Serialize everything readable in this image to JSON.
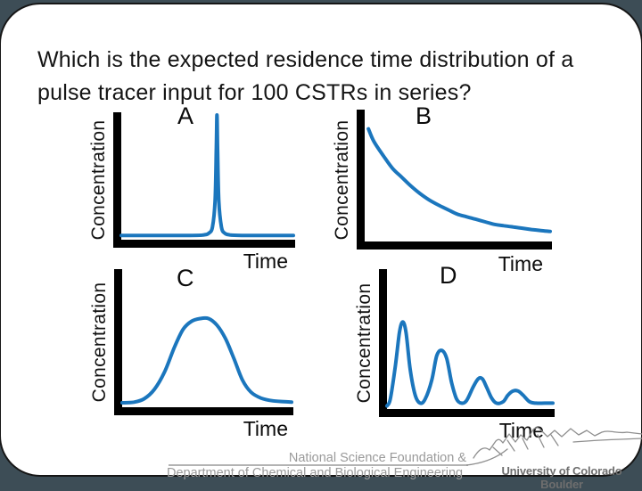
{
  "colors": {
    "background_edge": "#3d4d56",
    "slide_bg": "#ffffff",
    "frame_border": "#161616",
    "curve": "#1b76bd",
    "axis": "#000000",
    "title_text": "#151515",
    "footer_text": "#9a9a9a",
    "logo_text": "#6e6e6e"
  },
  "slide": {
    "title_line1": "Which is the expected residence time distribution of a",
    "title_line2": "pulse tracer input for 100 CSTRs in series?"
  },
  "chart_data": [
    {
      "id": "A",
      "type": "line",
      "title": "A",
      "xlabel": "Time",
      "ylabel": "Concentration",
      "description": "Single very sharp narrow pulse peaking at ~56% of the time axis, flat near-zero baseline elsewhere",
      "x_range": [
        0,
        1
      ],
      "y_range": [
        0,
        1
      ],
      "grid": false,
      "legend": false,
      "points": [
        [
          0,
          0.02
        ],
        [
          0.4,
          0.02
        ],
        [
          0.48,
          0.025
        ],
        [
          0.51,
          0.04
        ],
        [
          0.53,
          0.09
        ],
        [
          0.545,
          0.3
        ],
        [
          0.552,
          0.7
        ],
        [
          0.556,
          1.0
        ],
        [
          0.56,
          0.7
        ],
        [
          0.567,
          0.3
        ],
        [
          0.582,
          0.09
        ],
        [
          0.6,
          0.04
        ],
        [
          0.63,
          0.025
        ],
        [
          0.7,
          0.02
        ],
        [
          0.85,
          0.02
        ],
        [
          1,
          0.02
        ]
      ]
    },
    {
      "id": "B",
      "type": "line",
      "title": "B",
      "xlabel": "Time",
      "ylabel": "Concentration",
      "description": "Exponential decay from a high initial concentration toward a long low tail",
      "x_range": [
        0,
        1
      ],
      "y_range": [
        0,
        1
      ],
      "grid": false,
      "legend": false,
      "points": [
        [
          0.02,
          0.87
        ],
        [
          0.05,
          0.77
        ],
        [
          0.1,
          0.66
        ],
        [
          0.15,
          0.56
        ],
        [
          0.2,
          0.49
        ],
        [
          0.25,
          0.42
        ],
        [
          0.3,
          0.36
        ],
        [
          0.35,
          0.31
        ],
        [
          0.4,
          0.27
        ],
        [
          0.45,
          0.235
        ],
        [
          0.5,
          0.2
        ],
        [
          0.55,
          0.18
        ],
        [
          0.6,
          0.16
        ],
        [
          0.65,
          0.14
        ],
        [
          0.7,
          0.12
        ],
        [
          0.75,
          0.11
        ],
        [
          0.8,
          0.1
        ],
        [
          0.85,
          0.09
        ],
        [
          0.9,
          0.08
        ],
        [
          0.95,
          0.072
        ],
        [
          1,
          0.065
        ]
      ]
    },
    {
      "id": "C",
      "type": "line",
      "title": "C",
      "xlabel": "Time",
      "ylabel": "Concentration",
      "description": "Broad bell-shaped distribution with slightly flattened top centered near mid time axis",
      "x_range": [
        0,
        1
      ],
      "y_range": [
        0,
        1
      ],
      "grid": false,
      "legend": false,
      "points": [
        [
          0,
          0.02
        ],
        [
          0.07,
          0.025
        ],
        [
          0.13,
          0.05
        ],
        [
          0.19,
          0.12
        ],
        [
          0.25,
          0.25
        ],
        [
          0.31,
          0.44
        ],
        [
          0.36,
          0.57
        ],
        [
          0.41,
          0.63
        ],
        [
          0.46,
          0.65
        ],
        [
          0.51,
          0.65
        ],
        [
          0.56,
          0.6
        ],
        [
          0.61,
          0.5
        ],
        [
          0.66,
          0.35
        ],
        [
          0.71,
          0.19
        ],
        [
          0.76,
          0.1
        ],
        [
          0.82,
          0.055
        ],
        [
          0.89,
          0.035
        ],
        [
          1,
          0.025
        ]
      ]
    },
    {
      "id": "D",
      "type": "line",
      "title": "D",
      "xlabel": "Time",
      "ylabel": "Concentration",
      "description": "Damped oscillation: four successive peaks of decreasing height (~0.63, 0.42, 0.21, 0.12)",
      "x_range": [
        0,
        1
      ],
      "y_range": [
        0,
        1
      ],
      "grid": false,
      "legend": false,
      "points": [
        [
          0,
          0.01
        ],
        [
          0.02,
          0.06
        ],
        [
          0.05,
          0.3
        ],
        [
          0.075,
          0.55
        ],
        [
          0.095,
          0.63
        ],
        [
          0.115,
          0.55
        ],
        [
          0.14,
          0.28
        ],
        [
          0.17,
          0.09
        ],
        [
          0.2,
          0.03
        ],
        [
          0.23,
          0.06
        ],
        [
          0.27,
          0.2
        ],
        [
          0.3,
          0.38
        ],
        [
          0.33,
          0.42
        ],
        [
          0.36,
          0.36
        ],
        [
          0.39,
          0.18
        ],
        [
          0.42,
          0.06
        ],
        [
          0.45,
          0.03
        ],
        [
          0.48,
          0.05
        ],
        [
          0.52,
          0.15
        ],
        [
          0.55,
          0.21
        ],
        [
          0.575,
          0.21
        ],
        [
          0.6,
          0.15
        ],
        [
          0.63,
          0.07
        ],
        [
          0.66,
          0.03
        ],
        [
          0.7,
          0.04
        ],
        [
          0.73,
          0.09
        ],
        [
          0.76,
          0.12
        ],
        [
          0.79,
          0.12
        ],
        [
          0.82,
          0.09
        ],
        [
          0.86,
          0.04
        ],
        [
          0.9,
          0.03
        ],
        [
          0.95,
          0.03
        ],
        [
          1,
          0.03
        ]
      ]
    }
  ],
  "footer": {
    "credit_line1": "National Science Foundation &",
    "credit_line2": "Department of Chemical and Biological Engineering",
    "university": "University of Colorado Boulder"
  }
}
